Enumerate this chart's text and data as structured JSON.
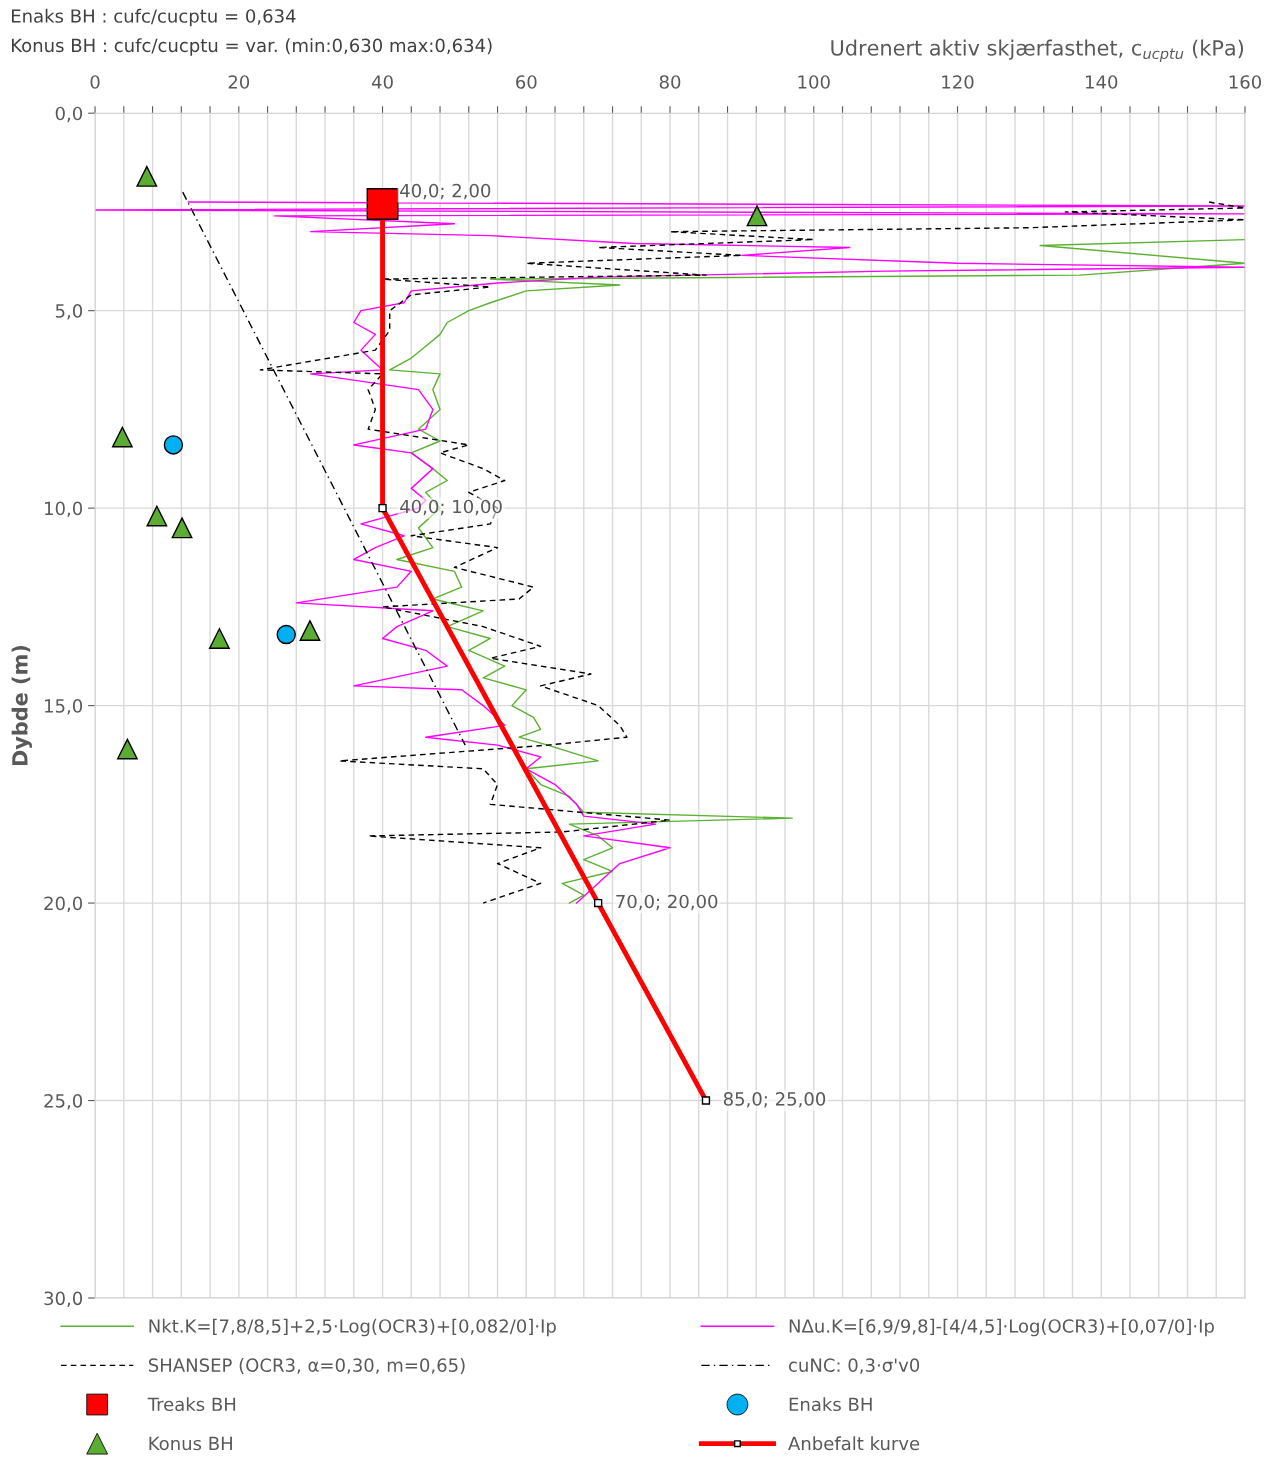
{
  "chart_data": {
    "type": "line",
    "xlabel": "Udrenert aktiv skjærfasthet, c$_{ucptu}$ (kPa)",
    "ylabel": "Dybde (m)",
    "annotations": [
      "Enaks BH : cufc/cucptu = 0,634",
      "Konus BH : cufc/cucptu = var. (min:0,630 max:0,634)"
    ],
    "xlim": [
      0,
      160
    ],
    "xticks": [
      0,
      {
        "value": 4,
        "label": null
      },
      {
        "value": 8,
        "label": null
      },
      {
        "value": 12,
        "label": null
      },
      {
        "value": 16,
        "label": null
      },
      20,
      {
        "value": 24,
        "label": null
      },
      {
        "value": 28,
        "label": null
      },
      {
        "value": 32,
        "label": null
      },
      {
        "value": 36,
        "label": null
      },
      40,
      {
        "value": 44,
        "label": null
      },
      {
        "value": 48,
        "label": null
      },
      {
        "value": 52,
        "label": null
      },
      {
        "value": 56,
        "label": null
      },
      60,
      {
        "value": 64,
        "label": null
      },
      {
        "value": 68,
        "label": null
      },
      {
        "value": 72,
        "label": null
      },
      {
        "value": 76,
        "label": null
      },
      80,
      {
        "value": 84,
        "label": null
      },
      {
        "value": 88,
        "label": null
      },
      {
        "value": 92,
        "label": null
      },
      {
        "value": 96,
        "label": null
      },
      100,
      {
        "value": 104,
        "label": null
      },
      {
        "value": 108,
        "label": null
      },
      {
        "value": 112,
        "label": null
      },
      {
        "value": 116,
        "label": null
      },
      120,
      {
        "value": 124,
        "label": null
      },
      {
        "value": 128,
        "label": null
      },
      {
        "value": 132,
        "label": null
      },
      {
        "value": 136,
        "label": null
      },
      140,
      {
        "value": 144,
        "label": null
      },
      {
        "value": 148,
        "label": null
      },
      {
        "value": 152,
        "label": null
      },
      {
        "value": 156,
        "label": null
      },
      160
    ],
    "ylim": [
      30,
      0
    ],
    "yticks": [
      {
        "value": 0,
        "label": "0,0"
      },
      {
        "value": 5,
        "label": "5,0"
      },
      {
        "value": 10,
        "label": "10,0"
      },
      {
        "value": 15,
        "label": "15,0"
      },
      {
        "value": 20,
        "label": "20,0"
      },
      {
        "value": 25,
        "label": "25,0"
      },
      {
        "value": 30,
        "label": "30,0"
      }
    ],
    "grid": true,
    "legend": "bottom",
    "series": [
      {
        "name": "Nkt.K=[7,8/8,5]+2,5·Log(OCR3)+[0,082/0]·Ip",
        "color": "#5bb131",
        "line_style": "solid",
        "marker": "none",
        "x": [
          160,
          131.5,
          160,
          137,
          55,
          73,
          60,
          55,
          52,
          49,
          48,
          46,
          44,
          41,
          48,
          47,
          48,
          45,
          48,
          44,
          47,
          49,
          46,
          48,
          45,
          47,
          42,
          50,
          51,
          47,
          54,
          49,
          55,
          52,
          57,
          54,
          60,
          58,
          61,
          62,
          59,
          63,
          70,
          60,
          62,
          66,
          68,
          97,
          66,
          70,
          72,
          68,
          72,
          65,
          68,
          66
        ],
        "values": [
          3.2,
          3.35,
          3.8,
          4.1,
          4.2,
          4.35,
          4.5,
          4.8,
          5.0,
          5.3,
          5.6,
          5.9,
          6.2,
          6.5,
          6.6,
          7.0,
          7.5,
          8.0,
          8.3,
          8.6,
          9.0,
          9.3,
          9.6,
          10.0,
          10.5,
          11.0,
          11.3,
          11.6,
          12.0,
          12.3,
          12.6,
          13.0,
          13.3,
          13.6,
          14.0,
          14.3,
          14.6,
          15.0,
          15.3,
          15.6,
          15.8,
          16.0,
          16.4,
          16.6,
          17.0,
          17.3,
          17.7,
          17.85,
          18.0,
          18.3,
          18.6,
          18.9,
          19.2,
          19.5,
          19.8,
          20.0
        ]
      },
      {
        "name": "NΔu.K=[6,9/9,8]-[4/4,5]·Log(OCR3)+[0,07/0]·Ip",
        "color": "#ff00ff",
        "line_style": "solid",
        "marker": "none",
        "x": [
          13,
          160,
          0,
          160,
          25,
          50,
          30,
          55,
          75,
          105,
          90,
          120,
          160,
          110,
          70,
          56,
          44,
          43,
          37,
          36,
          39,
          37,
          40,
          30,
          45,
          47,
          46,
          36,
          44,
          47,
          44,
          46,
          45,
          37,
          43,
          39,
          36,
          44,
          42,
          28,
          47,
          42,
          40,
          46,
          49,
          36,
          51,
          54,
          57,
          46,
          56,
          62,
          60,
          64,
          67,
          68,
          78,
          68,
          80,
          73,
          70,
          67
        ],
        "values": [
          2.25,
          2.35,
          2.45,
          2.55,
          2.6,
          2.8,
          3.0,
          3.1,
          3.3,
          3.4,
          3.6,
          3.8,
          3.9,
          4.0,
          4.15,
          4.3,
          4.5,
          4.8,
          5.0,
          5.3,
          5.6,
          6.0,
          6.5,
          6.6,
          7.0,
          7.5,
          8.0,
          8.4,
          8.6,
          9.0,
          9.5,
          9.8,
          10.0,
          10.4,
          10.7,
          11.0,
          11.3,
          11.6,
          12.0,
          12.4,
          12.6,
          13.0,
          13.3,
          13.6,
          14.0,
          14.5,
          14.6,
          15.0,
          15.5,
          15.8,
          16.0,
          16.3,
          16.6,
          17.0,
          17.5,
          17.8,
          18.0,
          18.3,
          18.6,
          19.0,
          19.5,
          20.0
        ]
      },
      {
        "name": "SHANSEP (OCR3, α=0,30, m=0,65)",
        "color": "#000000",
        "line_style": "dashed",
        "marker": "none",
        "x": [
          155,
          160,
          135,
          160,
          130,
          80,
          100,
          70,
          90,
          60,
          85,
          40,
          55,
          44,
          41,
          41,
          39,
          23,
          40,
          38,
          39,
          38,
          52,
          48,
          54,
          57,
          52,
          56,
          55,
          44,
          56,
          50,
          61,
          59,
          40,
          54,
          62,
          55,
          69,
          62,
          70,
          73,
          74,
          63,
          34,
          54,
          56,
          55,
          80,
          65,
          38,
          62,
          56,
          62,
          54
        ],
        "values": [
          2.25,
          2.4,
          2.5,
          2.7,
          2.9,
          3.0,
          3.2,
          3.4,
          3.6,
          3.8,
          4.1,
          4.2,
          4.4,
          4.6,
          5.0,
          5.5,
          6.0,
          6.5,
          6.6,
          7.0,
          7.5,
          8.0,
          8.4,
          8.6,
          9.0,
          9.3,
          9.6,
          10.0,
          10.4,
          10.7,
          11.0,
          11.5,
          12.0,
          12.3,
          12.5,
          13.0,
          13.5,
          13.8,
          14.2,
          14.5,
          15.0,
          15.5,
          15.8,
          16.0,
          16.4,
          16.6,
          17.0,
          17.5,
          17.9,
          18.2,
          18.3,
          18.6,
          19.0,
          19.5,
          20.0
        ]
      },
      {
        "name": "cuNC: 0,3·σ'v0",
        "color": "#000000",
        "line_style": "dashdot",
        "marker": "none",
        "x": [
          12.2,
          51.5
        ],
        "values": [
          2.0,
          16.0
        ]
      },
      {
        "name": "Treaks BH",
        "color": "#ff0000",
        "type": "scatter",
        "marker": "square",
        "x": [
          40
        ],
        "values": [
          2.3
        ]
      },
      {
        "name": "Enaks BH",
        "color": "#00b0f0",
        "type": "scatter",
        "marker": "circle",
        "x": [
          10.9,
          26.6
        ],
        "values": [
          8.4,
          13.2
        ]
      },
      {
        "name": "Konus BH",
        "color": "#5aac32",
        "type": "scatter",
        "marker": "triangle",
        "x": [
          7.2,
          92.1,
          3.8,
          8.6,
          12.1,
          17.3,
          29.9,
          4.5
        ],
        "values": [
          1.6,
          2.6,
          8.2,
          10.2,
          10.5,
          13.3,
          13.1,
          16.1
        ]
      },
      {
        "name": "Anbefalt kurve",
        "color": "#ff0000",
        "line_style": "solid",
        "marker": "square",
        "x": [
          40,
          40,
          70,
          85
        ],
        "values": [
          2,
          10,
          20,
          25
        ],
        "value_labels": [
          "40,0; 2,00",
          "40,0; 10,00",
          "70,0; 20,00",
          "85,0; 25,00"
        ]
      }
    ]
  }
}
